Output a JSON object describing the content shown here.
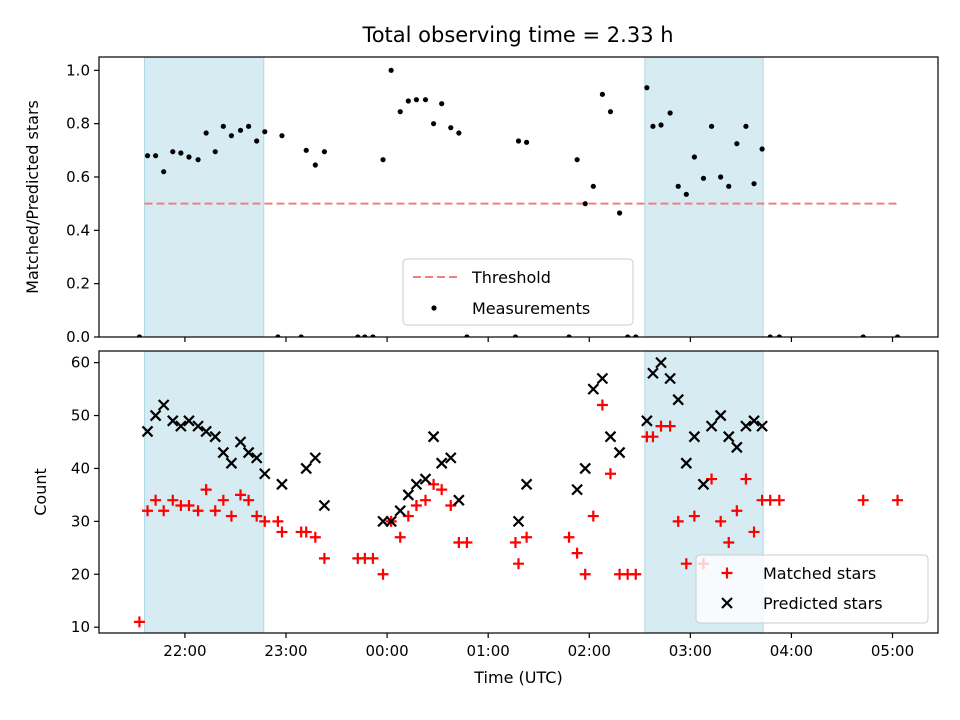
{
  "title": "Total observing time = 2.33 h",
  "colors": {
    "shade": "#add8e6",
    "threshold": "#f08080",
    "measurement": "#000000",
    "matched": "#ff0000",
    "predicted": "#000000"
  },
  "chart_data": [
    {
      "type": "scatter",
      "ylabel": "Matched/Predicted stars",
      "xlabel": "",
      "ylim": [
        0,
        1.05
      ],
      "yticks": [
        0.0,
        0.2,
        0.4,
        0.6,
        0.8,
        1.0
      ],
      "yticklabels": [
        "0.0",
        "0.2",
        "0.4",
        "0.6",
        "0.8",
        "1.0"
      ],
      "xticks": [
        22,
        23,
        24,
        25,
        26,
        27,
        28,
        29
      ],
      "show_xticklabels": false,
      "shaded_spans": [
        [
          21.6,
          22.78
        ],
        [
          26.55,
          27.72
        ]
      ],
      "legend": {
        "placement": "lower-center",
        "entries": [
          "Threshold",
          "Measurements"
        ]
      },
      "threshold": {
        "name": "Threshold",
        "y": 0.5,
        "x": [
          21.6,
          29.05
        ]
      },
      "series": [
        {
          "name": "Measurements",
          "marker": "dot",
          "points": [
            [
              21.55,
              0.0
            ],
            [
              21.63,
              0.68
            ],
            [
              21.71,
              0.68
            ],
            [
              21.79,
              0.62
            ],
            [
              21.88,
              0.695
            ],
            [
              21.96,
              0.69
            ],
            [
              22.04,
              0.675
            ],
            [
              22.13,
              0.665
            ],
            [
              22.21,
              0.765
            ],
            [
              22.3,
              0.695
            ],
            [
              22.38,
              0.79
            ],
            [
              22.46,
              0.755
            ],
            [
              22.55,
              0.775
            ],
            [
              22.63,
              0.79
            ],
            [
              22.71,
              0.735
            ],
            [
              22.79,
              0.77
            ],
            [
              22.92,
              0.0
            ],
            [
              22.96,
              0.755
            ],
            [
              23.15,
              0.0
            ],
            [
              23.2,
              0.7
            ],
            [
              23.29,
              0.645
            ],
            [
              23.38,
              0.695
            ],
            [
              23.71,
              0.0
            ],
            [
              23.78,
              0.0
            ],
            [
              23.86,
              0.0
            ],
            [
              23.96,
              0.665
            ],
            [
              24.04,
              1.0
            ],
            [
              24.13,
              0.845
            ],
            [
              24.21,
              0.885
            ],
            [
              24.29,
              0.89
            ],
            [
              24.38,
              0.89
            ],
            [
              24.46,
              0.8
            ],
            [
              24.54,
              0.875
            ],
            [
              24.63,
              0.785
            ],
            [
              24.71,
              0.765
            ],
            [
              24.79,
              0.0
            ],
            [
              25.27,
              0.0
            ],
            [
              25.3,
              0.735
            ],
            [
              25.38,
              0.73
            ],
            [
              25.8,
              0.0
            ],
            [
              25.88,
              0.665
            ],
            [
              25.96,
              0.5
            ],
            [
              26.04,
              0.565
            ],
            [
              26.13,
              0.91
            ],
            [
              26.21,
              0.845
            ],
            [
              26.3,
              0.465
            ],
            [
              26.38,
              0.0
            ],
            [
              26.46,
              0.0
            ],
            [
              26.57,
              0.935
            ],
            [
              26.63,
              0.79
            ],
            [
              26.71,
              0.795
            ],
            [
              26.8,
              0.84
            ],
            [
              26.88,
              0.565
            ],
            [
              26.96,
              0.535
            ],
            [
              27.04,
              0.675
            ],
            [
              27.13,
              0.595
            ],
            [
              27.21,
              0.79
            ],
            [
              27.3,
              0.6
            ],
            [
              27.38,
              0.565
            ],
            [
              27.46,
              0.725
            ],
            [
              27.55,
              0.79
            ],
            [
              27.63,
              0.575
            ],
            [
              27.71,
              0.705
            ],
            [
              27.79,
              0.0
            ],
            [
              27.88,
              0.0
            ],
            [
              28.71,
              0.0
            ],
            [
              29.05,
              0.0
            ]
          ]
        }
      ]
    },
    {
      "type": "scatter",
      "ylabel": "Count",
      "xlabel": "Time (UTC)",
      "ylim": [
        8.9,
        62.2
      ],
      "yticks": [
        10,
        20,
        30,
        40,
        50,
        60
      ],
      "yticklabels": [
        "10",
        "20",
        "30",
        "40",
        "50",
        "60"
      ],
      "xticks": [
        22,
        23,
        24,
        25,
        26,
        27,
        28,
        29
      ],
      "xticklabels": [
        "22:00",
        "23:00",
        "00:00",
        "01:00",
        "02:00",
        "03:00",
        "04:00",
        "05:00"
      ],
      "shaded_spans": [
        [
          21.6,
          22.78
        ],
        [
          26.55,
          27.72
        ]
      ],
      "legend": {
        "placement": "lower-right",
        "entries": [
          "Matched stars",
          "Predicted stars"
        ]
      },
      "series": [
        {
          "name": "Matched stars",
          "marker": "plus",
          "points": [
            [
              21.55,
              11
            ],
            [
              21.63,
              32
            ],
            [
              21.71,
              34
            ],
            [
              21.79,
              32
            ],
            [
              21.88,
              34
            ],
            [
              21.96,
              33
            ],
            [
              22.04,
              33
            ],
            [
              22.13,
              32
            ],
            [
              22.21,
              36
            ],
            [
              22.3,
              32
            ],
            [
              22.38,
              34
            ],
            [
              22.46,
              31
            ],
            [
              22.55,
              35
            ],
            [
              22.63,
              34
            ],
            [
              22.71,
              31
            ],
            [
              22.79,
              30
            ],
            [
              22.92,
              30
            ],
            [
              22.96,
              28
            ],
            [
              23.15,
              28
            ],
            [
              23.2,
              28
            ],
            [
              23.29,
              27
            ],
            [
              23.38,
              23
            ],
            [
              23.71,
              23
            ],
            [
              23.78,
              23
            ],
            [
              23.86,
              23
            ],
            [
              23.96,
              20
            ],
            [
              24.04,
              30
            ],
            [
              24.13,
              27
            ],
            [
              24.21,
              31
            ],
            [
              24.29,
              33
            ],
            [
              24.38,
              34
            ],
            [
              24.46,
              37
            ],
            [
              24.54,
              36
            ],
            [
              24.63,
              33
            ],
            [
              24.71,
              26
            ],
            [
              24.79,
              26
            ],
            [
              25.27,
              26
            ],
            [
              25.3,
              22
            ],
            [
              25.38,
              27
            ],
            [
              25.8,
              27
            ],
            [
              25.88,
              24
            ],
            [
              25.96,
              20
            ],
            [
              26.04,
              31
            ],
            [
              26.13,
              52
            ],
            [
              26.21,
              39
            ],
            [
              26.3,
              20
            ],
            [
              26.38,
              20
            ],
            [
              26.46,
              20
            ],
            [
              26.57,
              46
            ],
            [
              26.63,
              46
            ],
            [
              26.71,
              48
            ],
            [
              26.8,
              48
            ],
            [
              26.88,
              30
            ],
            [
              26.96,
              22
            ],
            [
              27.04,
              31
            ],
            [
              27.13,
              22
            ],
            [
              27.21,
              38
            ],
            [
              27.3,
              30
            ],
            [
              27.38,
              26
            ],
            [
              27.46,
              32
            ],
            [
              27.55,
              38
            ],
            [
              27.63,
              28
            ],
            [
              27.71,
              34
            ],
            [
              27.79,
              34
            ],
            [
              27.88,
              34
            ],
            [
              28.71,
              34
            ],
            [
              29.05,
              34
            ]
          ]
        },
        {
          "name": "Predicted stars",
          "marker": "x",
          "points": [
            [
              21.63,
              47
            ],
            [
              21.71,
              50
            ],
            [
              21.79,
              52
            ],
            [
              21.88,
              49
            ],
            [
              21.96,
              48
            ],
            [
              22.04,
              49
            ],
            [
              22.13,
              48
            ],
            [
              22.21,
              47
            ],
            [
              22.3,
              46
            ],
            [
              22.38,
              43
            ],
            [
              22.46,
              41
            ],
            [
              22.55,
              45
            ],
            [
              22.63,
              43
            ],
            [
              22.71,
              42
            ],
            [
              22.79,
              39
            ],
            [
              22.96,
              37
            ],
            [
              23.2,
              40
            ],
            [
              23.29,
              42
            ],
            [
              23.38,
              33
            ],
            [
              23.96,
              30
            ],
            [
              24.04,
              30
            ],
            [
              24.13,
              32
            ],
            [
              24.21,
              35
            ],
            [
              24.29,
              37
            ],
            [
              24.38,
              38
            ],
            [
              24.46,
              46
            ],
            [
              24.54,
              41
            ],
            [
              24.63,
              42
            ],
            [
              24.71,
              34
            ],
            [
              25.3,
              30
            ],
            [
              25.38,
              37
            ],
            [
              25.88,
              36
            ],
            [
              25.96,
              40
            ],
            [
              26.04,
              55
            ],
            [
              26.13,
              57
            ],
            [
              26.21,
              46
            ],
            [
              26.3,
              43
            ],
            [
              26.57,
              49
            ],
            [
              26.63,
              58
            ],
            [
              26.71,
              60
            ],
            [
              26.8,
              57
            ],
            [
              26.88,
              53
            ],
            [
              26.96,
              41
            ],
            [
              27.04,
              46
            ],
            [
              27.13,
              37
            ],
            [
              27.21,
              48
            ],
            [
              27.3,
              50
            ],
            [
              27.38,
              46
            ],
            [
              27.46,
              44
            ],
            [
              27.55,
              48
            ],
            [
              27.63,
              49
            ],
            [
              27.71,
              48
            ]
          ]
        }
      ]
    }
  ]
}
